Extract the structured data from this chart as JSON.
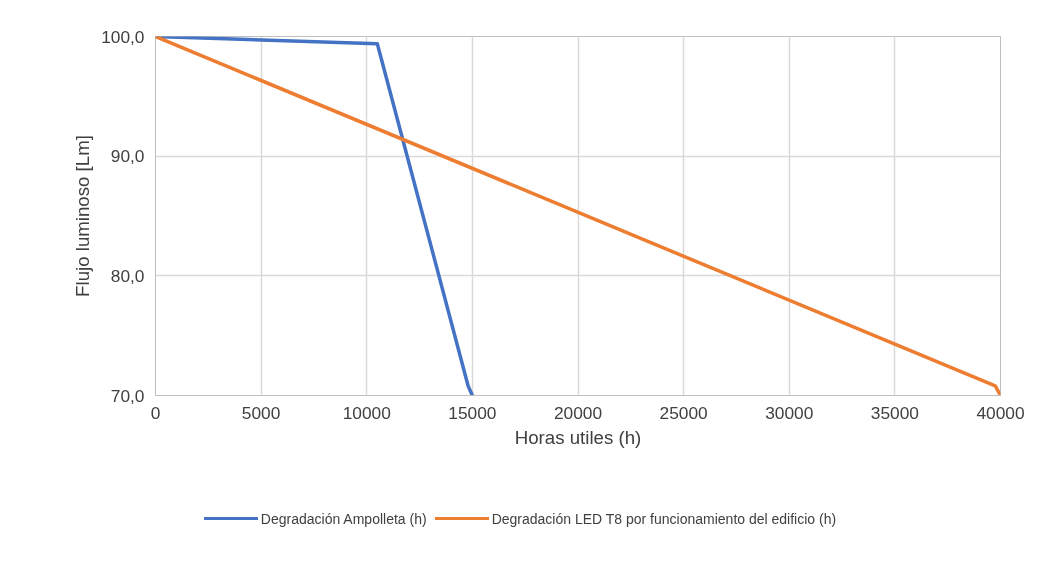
{
  "chart_data": {
    "type": "line",
    "xlabel": "Horas utiles (h)",
    "ylabel": "Flujo luminoso [Lm]",
    "xlim": [
      0,
      40000
    ],
    "ylim": [
      70,
      100
    ],
    "xticks": [
      0,
      5000,
      10000,
      15000,
      20000,
      25000,
      30000,
      35000,
      40000
    ],
    "yticks": [
      {
        "value": 70,
        "label": "70,0"
      },
      {
        "value": 80,
        "label": "80,0"
      },
      {
        "value": 90,
        "label": "90,0"
      },
      {
        "value": 100,
        "label": "100,0"
      }
    ],
    "grid": true,
    "legend": "bottom",
    "marker": "none",
    "line_style": "solid",
    "series": [
      {
        "name": "Degradación Ampolleta (h)",
        "color": "#4472c4",
        "x": [
          0,
          10500,
          14800,
          15000
        ],
        "values": [
          100,
          99.4,
          70.8,
          70
        ]
      },
      {
        "name": "Degradación LED T8 por funcionamiento del edificio (h)",
        "color": "#ed7d31",
        "x": [
          0,
          39750,
          40000
        ],
        "values": [
          100,
          70.8,
          70
        ]
      }
    ]
  }
}
